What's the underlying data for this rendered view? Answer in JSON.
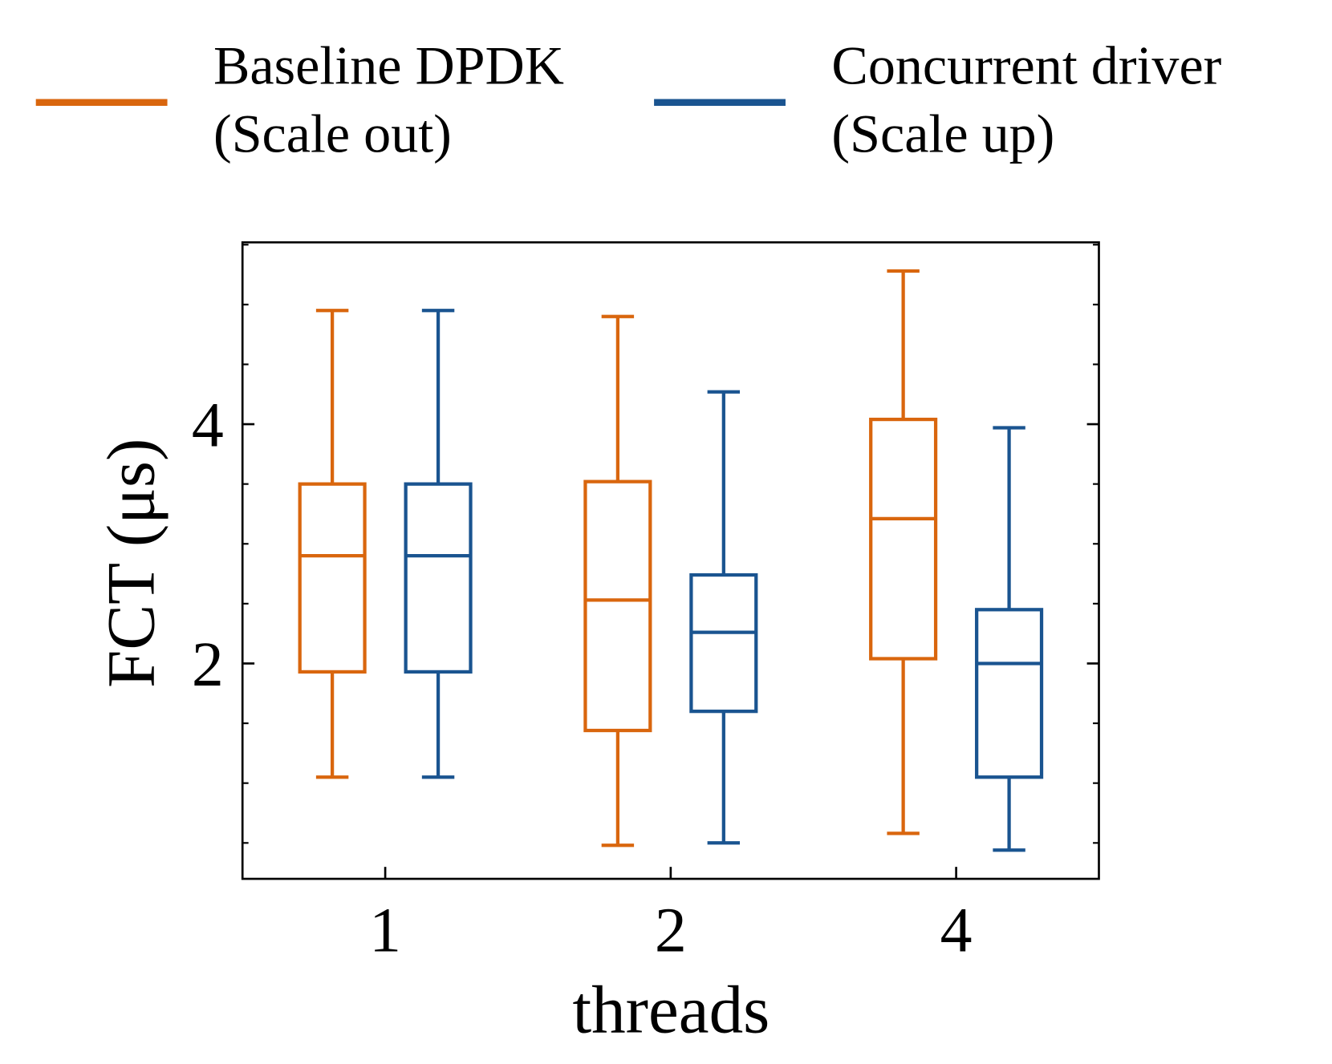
{
  "chart_data": {
    "type": "box",
    "xlabel": "threads",
    "ylabel": "FCT (μs)",
    "categories": [
      "1",
      "2",
      "4"
    ],
    "ylim": [
      0.2,
      5.52
    ],
    "yticks": [
      2,
      4
    ],
    "yminor_ticks": [
      0.5,
      1,
      1.5,
      2.5,
      3,
      3.5,
      4.5,
      5,
      5.5
    ],
    "series": [
      {
        "name": [
          "Baseline DPDK",
          "(Scale out)"
        ],
        "color": "#d9660e",
        "values": [
          {
            "whislo": 1.05,
            "q1": 1.93,
            "med": 2.9,
            "q3": 3.5,
            "whishi": 4.95
          },
          {
            "whislo": 0.48,
            "q1": 1.44,
            "med": 2.53,
            "q3": 3.52,
            "whishi": 4.9
          },
          {
            "whislo": 0.58,
            "q1": 2.04,
            "med": 3.21,
            "q3": 4.04,
            "whishi": 5.28
          }
        ]
      },
      {
        "name": [
          "Concurrent driver",
          "(Scale up)"
        ],
        "color": "#1a5490",
        "values": [
          {
            "whislo": 1.05,
            "q1": 1.93,
            "med": 2.9,
            "q3": 3.5,
            "whishi": 4.95
          },
          {
            "whislo": 0.5,
            "q1": 1.6,
            "med": 2.26,
            "q3": 2.74,
            "whishi": 4.27
          },
          {
            "whislo": 0.44,
            "q1": 1.05,
            "med": 2.0,
            "q3": 2.45,
            "whishi": 3.97
          }
        ]
      }
    ]
  }
}
